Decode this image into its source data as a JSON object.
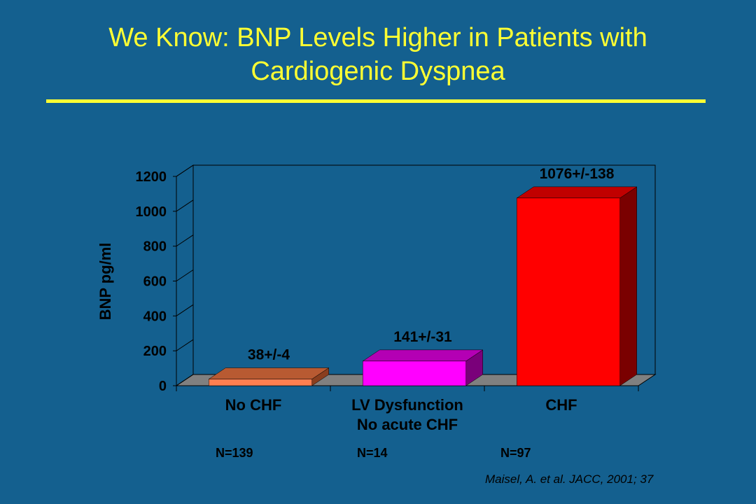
{
  "slide": {
    "title_line1": "We Know: BNP Levels Higher in Patients with",
    "title_line2": "Cardiogenic Dyspnea",
    "citation": "Maisel, A. et al. JACC, 2001; 37"
  },
  "sample_sizes": [
    "N=139",
    "N=14",
    "N=97"
  ],
  "colors": {
    "background": "#14608f",
    "title": "#ffff33",
    "wall": "#14608f",
    "floor": "#808080"
  },
  "chart_data": {
    "type": "bar",
    "style": "3d",
    "categories": [
      [
        "No CHF"
      ],
      [
        "LV Dysfunction",
        "No acute CHF"
      ],
      [
        "CHF"
      ]
    ],
    "values": [
      38,
      141,
      1076
    ],
    "data_labels": [
      "38+/-4",
      "141+/-31",
      "1076+/-138"
    ],
    "bar_colors": [
      {
        "front": "#ff7f50",
        "top": "#b85a32",
        "side": "#8a3e1e"
      },
      {
        "front": "#ff00ff",
        "top": "#b400b4",
        "side": "#7a007a"
      },
      {
        "front": "#ff0000",
        "top": "#c00000",
        "side": "#7a0000"
      }
    ],
    "ylabel": "BNP pg/ml",
    "ylim": [
      0,
      1200
    ],
    "yticks": [
      0,
      200,
      400,
      600,
      800,
      1000,
      1200
    ],
    "grid": false
  }
}
